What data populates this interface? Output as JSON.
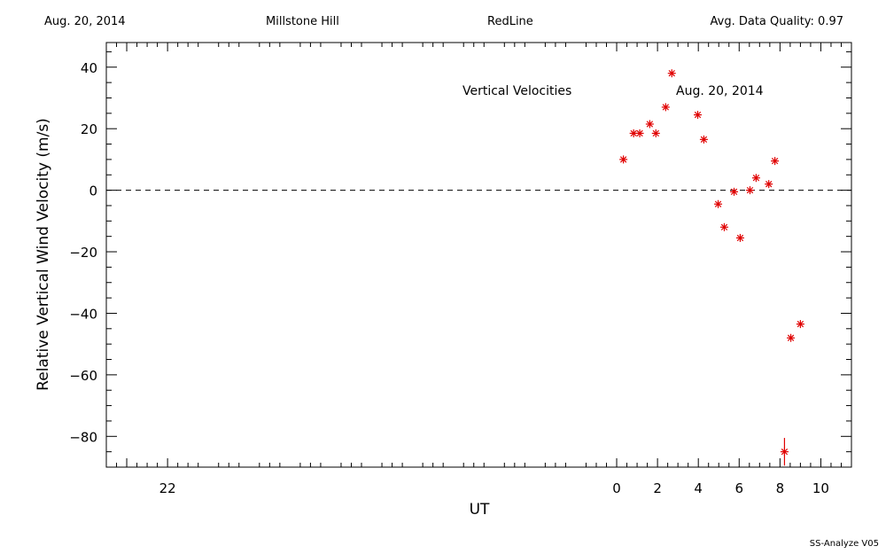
{
  "header": {
    "date": "Aug. 20, 2014",
    "site": "Millstone Hill",
    "line": "RedLine",
    "quality": "Avg. Data Quality: 0.97"
  },
  "footer": {
    "software": "SS-Analyze V05"
  },
  "chart_data": {
    "type": "scatter",
    "xlabel": "UT",
    "ylabel": "Relative Vertical Wind Velocity (m/s)",
    "xlim": [
      -25,
      11.5
    ],
    "ylim": [
      -90,
      48
    ],
    "x_tick_values": [
      -24,
      -22,
      0,
      2,
      4,
      6,
      8,
      10
    ],
    "x_tick_labels": [
      "",
      "22",
      "0",
      "2",
      "4",
      "6",
      "8",
      "10"
    ],
    "y_ticks": [
      -80,
      -60,
      -40,
      -20,
      0,
      20,
      40
    ],
    "annotations": [
      "Vertical Velocities",
      "Aug. 20, 2014"
    ],
    "zero_line": true,
    "marker_color": "#e00000",
    "points": [
      {
        "x": 0.33,
        "y": 10
      },
      {
        "x": 0.83,
        "y": 18.5
      },
      {
        "x": 1.13,
        "y": 18.5
      },
      {
        "x": 1.62,
        "y": 21.5
      },
      {
        "x": 1.92,
        "y": 18.5
      },
      {
        "x": 2.4,
        "y": 27
      },
      {
        "x": 2.7,
        "y": 38
      },
      {
        "x": 3.97,
        "y": 24.5
      },
      {
        "x": 4.27,
        "y": 16.5
      },
      {
        "x": 4.97,
        "y": -4.5
      },
      {
        "x": 5.27,
        "y": -12
      },
      {
        "x": 5.75,
        "y": -0.5
      },
      {
        "x": 6.05,
        "y": -15.5
      },
      {
        "x": 6.53,
        "y": 0
      },
      {
        "x": 6.83,
        "y": 4
      },
      {
        "x": 7.45,
        "y": 2
      },
      {
        "x": 7.75,
        "y": 9.5
      },
      {
        "x": 8.22,
        "y": -85
      },
      {
        "x": 8.53,
        "y": -48
      },
      {
        "x": 9.0,
        "y": -43.5
      }
    ],
    "error_bars": [
      {
        "x": 8.22,
        "low": -89.5,
        "high": -80.5
      }
    ]
  }
}
